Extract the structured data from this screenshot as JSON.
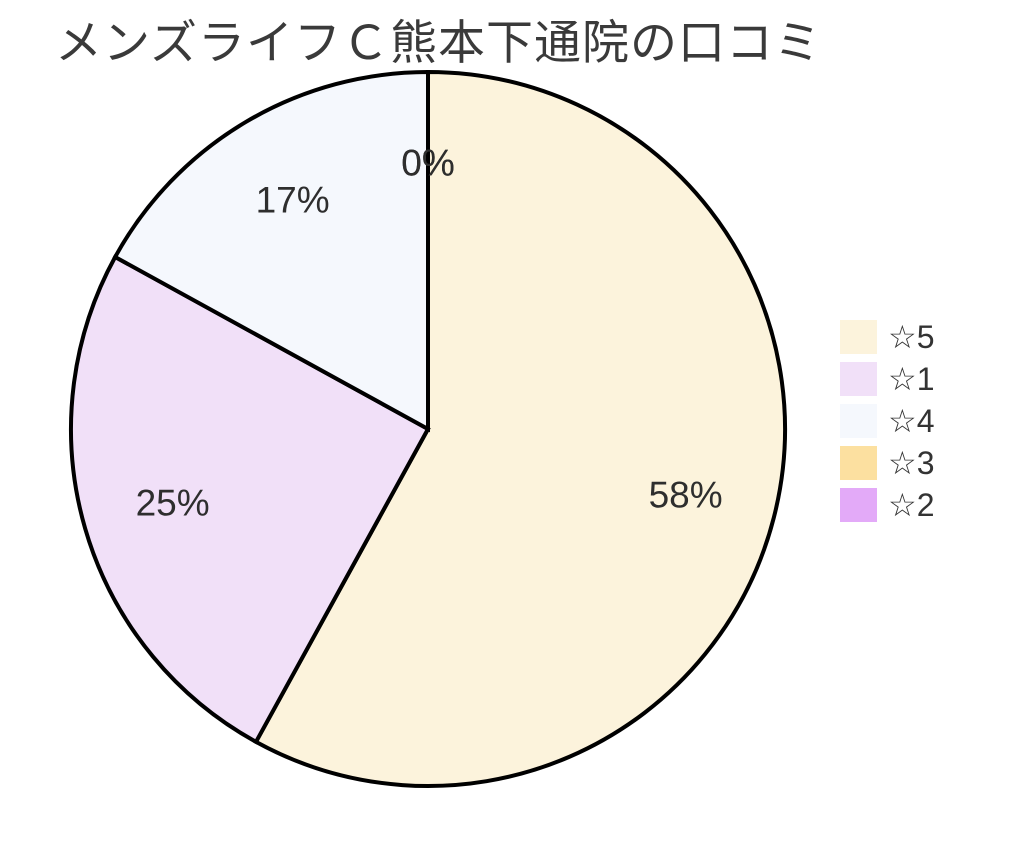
{
  "chart_data": {
    "type": "pie",
    "title": "メンズライフＣ熊本下通院の口コミ",
    "legend_position": "right",
    "start_angle_deg": 0,
    "direction": "clockwise",
    "stroke_color": "#000000",
    "label_color": "#2e2e2e",
    "slices": [
      {
        "label": "☆5",
        "value": 58,
        "pct_label": "58%",
        "color": "#fcf3dc"
      },
      {
        "label": "☆1",
        "value": 25,
        "pct_label": "25%",
        "color": "#f1e0f8"
      },
      {
        "label": "☆4",
        "value": 17,
        "pct_label": "17%",
        "color": "#f5f8fd"
      },
      {
        "label": "☆3",
        "value": 0,
        "pct_label": "0%",
        "color": "#fce0a0"
      },
      {
        "label": "☆2",
        "value": 0,
        "pct_label": "0%",
        "color": "#e3aaf8"
      }
    ]
  }
}
